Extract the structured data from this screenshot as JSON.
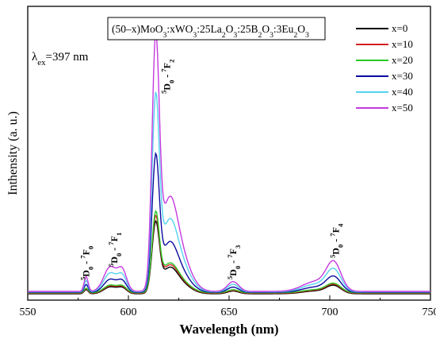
{
  "chart_data": {
    "type": "line",
    "title_formula": [
      "(50–x)MoO",
      "3",
      ":xWO",
      "3",
      ":25La",
      "2",
      "O",
      "3",
      ":25B",
      "2",
      "O",
      "3",
      ":3Eu",
      "2",
      "O",
      "3"
    ],
    "excitation": {
      "symbol": "λ",
      "sub": "ex",
      "text": "=397 nm"
    },
    "xlabel": "Wavelength (nm)",
    "ylabel": "Inthensity (a. u.)",
    "xlim": [
      550,
      750
    ],
    "xticks": [
      "550",
      "600",
      "650",
      "700",
      "750"
    ],
    "transitions": [
      {
        "parts": [
          "5",
          "D",
          "0",
          " - ",
          "7",
          "F",
          "0"
        ],
        "x": 579
      },
      {
        "parts": [
          "5",
          "D",
          "0",
          " - ",
          "7",
          "F",
          "1"
        ],
        "x": 593
      },
      {
        "parts": [
          "5",
          "D",
          "0",
          " - ",
          "7",
          "F",
          "2"
        ],
        "x": 619
      },
      {
        "parts": [
          "5",
          "D",
          "0",
          " - ",
          "7",
          "F",
          "3"
        ],
        "x": 652
      },
      {
        "parts": [
          "5",
          "D",
          "0",
          " - ",
          "7",
          "F",
          "4"
        ],
        "x": 703
      }
    ],
    "series": [
      {
        "name": "x=0",
        "color": "#000000",
        "amp": 0.28
      },
      {
        "name": "x=10",
        "color": "#d42020",
        "amp": 0.3
      },
      {
        "name": "x=20",
        "color": "#27c827",
        "amp": 0.315
      },
      {
        "name": "x=30",
        "color": "#0a0aa0",
        "amp": 0.535
      },
      {
        "name": "x=40",
        "color": "#55d3ee",
        "amp": 0.77
      },
      {
        "name": "x=50",
        "color": "#c63ae0",
        "amp": 1.0
      }
    ]
  }
}
